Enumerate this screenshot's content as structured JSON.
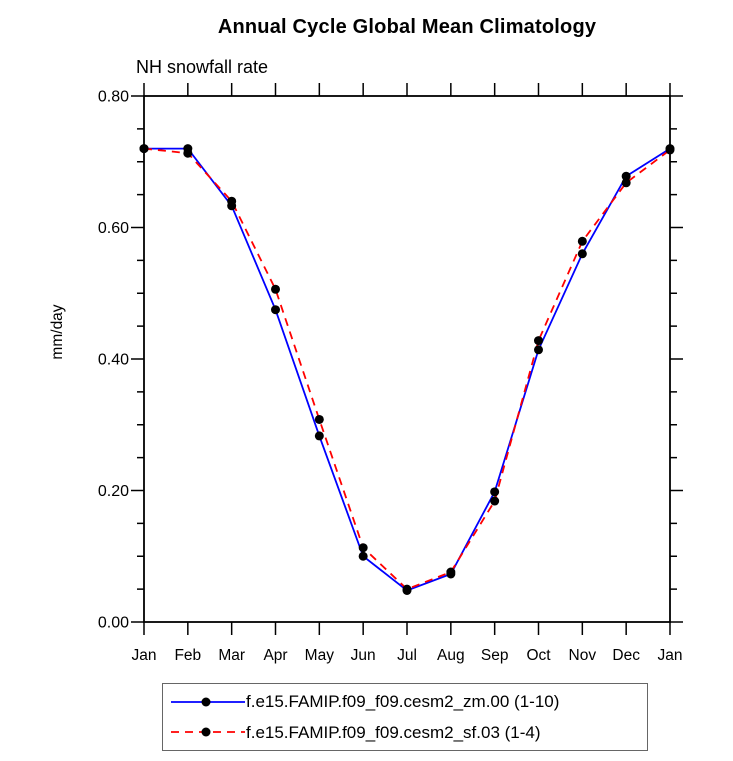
{
  "page": {
    "title": "Annual Cycle Global Mean Climatology",
    "subtitle": "NH snowfall rate",
    "ylabel": "mm/day"
  },
  "colors": {
    "series1": "#0000ff",
    "series2": "#ff0000",
    "marker": "#000000",
    "axis": "#000000",
    "legend_border": "#666666"
  },
  "chart_data": {
    "type": "line",
    "title": "Annual Cycle Global Mean Climatology",
    "subtitle": "NH snowfall rate",
    "xlabel": "",
    "ylabel": "mm/day",
    "ylim": [
      0.0,
      0.8
    ],
    "ytick_major": [
      0.0,
      0.2,
      0.4,
      0.6,
      0.8
    ],
    "ytick_labels": [
      "0.00",
      "0.20",
      "0.40",
      "0.60",
      "0.80"
    ],
    "ytick_minor_step": 0.05,
    "categories": [
      "Jan",
      "Feb",
      "Mar",
      "Apr",
      "May",
      "Jun",
      "Jul",
      "Aug",
      "Sep",
      "Oct",
      "Nov",
      "Dec",
      "Jan"
    ],
    "grid": false,
    "legend_position": "bottom",
    "series": [
      {
        "name": "f.e15.FAMIP.f09_f09.cesm2_zm.00 (1-10)",
        "color": "#0000ff",
        "style": "solid",
        "marker": "circle",
        "values": [
          0.72,
          0.72,
          0.633,
          0.475,
          0.283,
          0.1,
          0.048,
          0.073,
          0.198,
          0.414,
          0.56,
          0.678,
          0.72
        ]
      },
      {
        "name": "f.e15.FAMIP.f09_f09.cesm2_sf.03 (1-4)",
        "color": "#ff0000",
        "style": "dashed",
        "marker": "circle",
        "values": [
          0.72,
          0.713,
          0.64,
          0.506,
          0.308,
          0.113,
          0.05,
          0.076,
          0.184,
          0.428,
          0.579,
          0.668,
          0.718
        ]
      }
    ]
  }
}
